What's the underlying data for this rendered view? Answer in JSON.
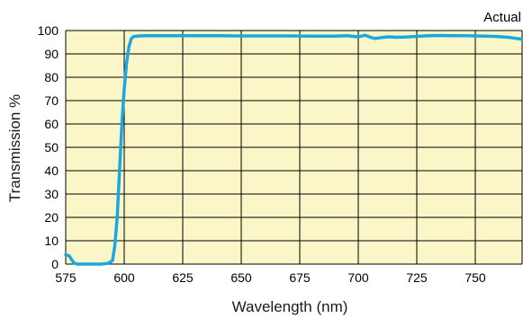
{
  "chart_data": {
    "type": "line",
    "title": "",
    "annotation": "Actual",
    "xlabel": "Wavelength (nm)",
    "ylabel": "Transmission %",
    "xlim": [
      575,
      770
    ],
    "ylim": [
      0,
      100
    ],
    "x_ticks": [
      575,
      600,
      625,
      650,
      675,
      700,
      725,
      750
    ],
    "y_ticks": [
      0,
      10,
      20,
      30,
      40,
      50,
      60,
      70,
      80,
      90,
      100
    ],
    "grid": true,
    "colors": {
      "plot_bg": "#FBF6C8",
      "line": "#1BA8E0",
      "grid": "#000000"
    },
    "series": [
      {
        "x": [
          575,
          576.5,
          577.5,
          578.5,
          580,
          585,
          590,
          593,
          595,
          596,
          597,
          598,
          599,
          600,
          601,
          602,
          603,
          604,
          605,
          606,
          610,
          620,
          630,
          640,
          650,
          660,
          670,
          680,
          690,
          695,
          700,
          703,
          705,
          707,
          710,
          713,
          716,
          720,
          725,
          730,
          735,
          740,
          745,
          750,
          755,
          760,
          765,
          770
        ],
        "y": [
          4,
          3.5,
          2,
          0.5,
          0,
          0,
          0,
          0.3,
          1.5,
          8,
          20,
          40,
          60,
          75,
          86,
          93,
          96.5,
          97.5,
          97.5,
          97.7,
          97.8,
          97.8,
          97.8,
          97.8,
          97.7,
          97.7,
          97.7,
          97.6,
          97.6,
          97.8,
          97.3,
          98,
          97.2,
          96.6,
          97,
          97.3,
          97.1,
          97.2,
          97.5,
          97.8,
          97.9,
          97.8,
          97.8,
          97.7,
          97.6,
          97.4,
          97,
          96.3
        ]
      }
    ]
  }
}
